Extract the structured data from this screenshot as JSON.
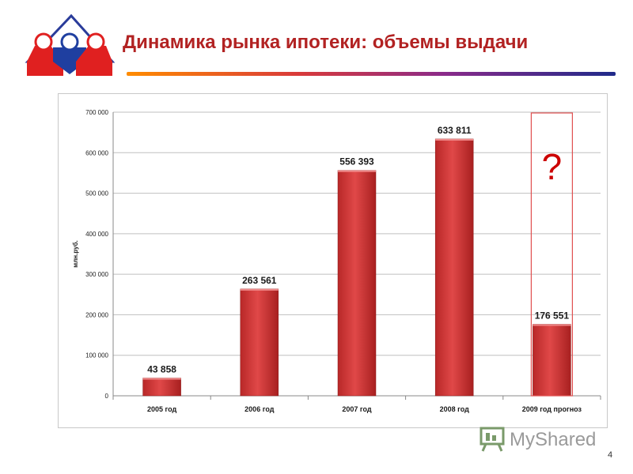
{
  "header": {
    "title": "Динамика рынка ипотеки: объемы выдачи"
  },
  "logo": {
    "icon": "house-people-logo-icon",
    "colors": [
      "#e02020",
      "#1f3fa0",
      "#e02020"
    ]
  },
  "chart_data": {
    "type": "bar",
    "title": "",
    "xlabel": "",
    "ylabel": "млн.руб.",
    "ylim": [
      0,
      700000
    ],
    "yticks": [
      0,
      100000,
      200000,
      300000,
      400000,
      500000,
      600000,
      700000
    ],
    "ytick_labels": [
      "0",
      "100 000",
      "200 000",
      "300 000",
      "400 000",
      "500 000",
      "600 000",
      "700 000"
    ],
    "categories": [
      "2005 год",
      "2006 год",
      "2007 год",
      "2008 год",
      "2009 год прогноз"
    ],
    "values": [
      43858,
      263561,
      556393,
      633811,
      176551
    ],
    "value_labels": [
      "43 858",
      "263 561",
      "556 393",
      "633 811",
      "176 551"
    ],
    "grid": true,
    "bar_color": "#d63a3a",
    "annotation": {
      "text": "?",
      "category_index": 4,
      "color": "#cc0000"
    }
  },
  "watermark": {
    "text": "MyShared",
    "icon": "presentation-board-icon"
  },
  "page_number": "4"
}
